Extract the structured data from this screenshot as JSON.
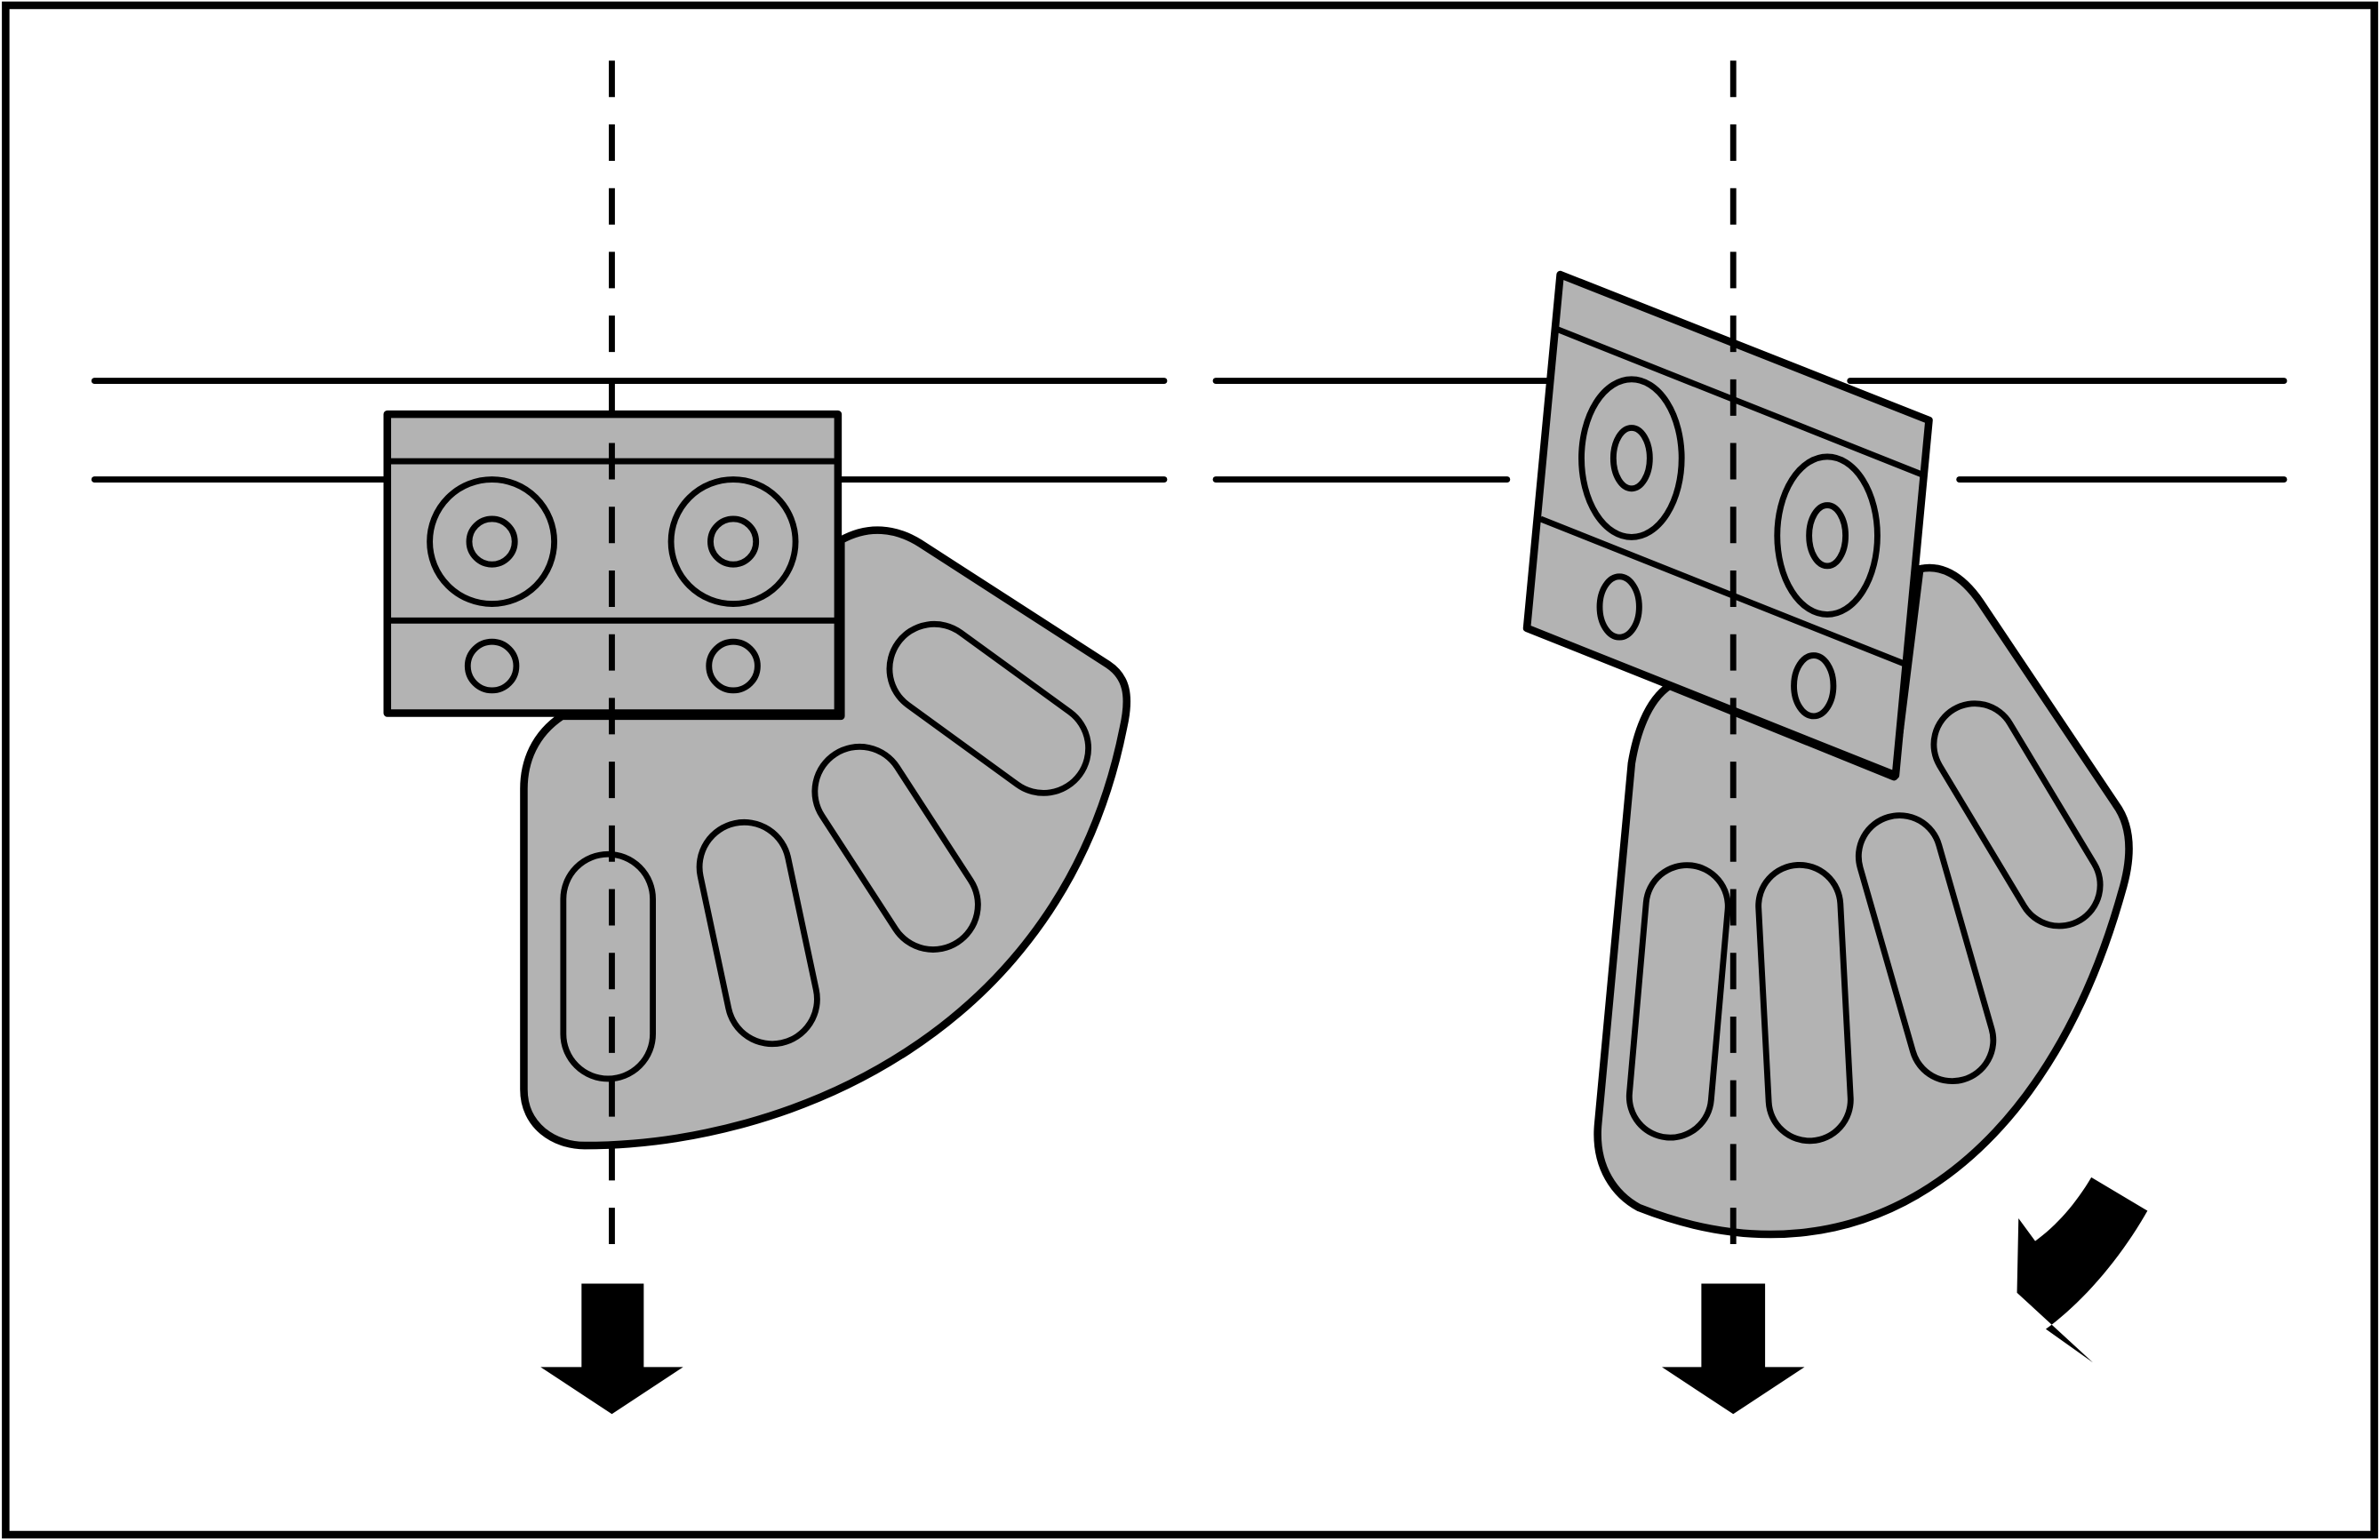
{
  "diagram": {
    "description_text": "",
    "colors": {
      "stroke": "#000000",
      "plate_fill": "#b3b3b3",
      "background": "#ffffff"
    },
    "panels": [
      {
        "name": "left-panel-aligned",
        "state": "aligned"
      },
      {
        "name": "right-panel-tilted",
        "state": "tilted"
      }
    ],
    "icons": [
      "down-arrow-icon",
      "down-arrow-icon",
      "curved-rotation-arrow-icon"
    ]
  }
}
